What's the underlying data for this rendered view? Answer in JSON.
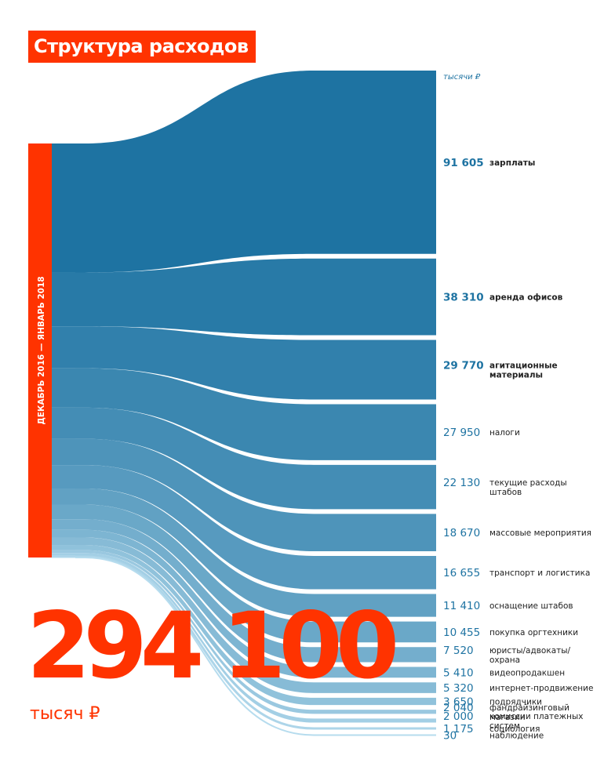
{
  "title": "Структура расходов",
  "chart_data": {
    "type": "sankey",
    "period": "ДЕКАБРЬ 2016 — ЯНВАРЬ 2018",
    "unit": "тысячи ₽",
    "total": "294 100",
    "total_unit": "тысяч ₽",
    "colors": {
      "accent": "#ff3300",
      "flow_dark": "#1e73a2",
      "flow_light": "#b6dcee"
    },
    "items": [
      {
        "value": 91605,
        "display": "91 605",
        "label": [
          "зарплаты"
        ],
        "bold": true
      },
      {
        "value": 38310,
        "display": "38 310",
        "label": [
          "аренда офисов"
        ],
        "bold": true
      },
      {
        "value": 29770,
        "display": "29 770",
        "label": [
          "агитационные",
          "материалы"
        ],
        "bold": true
      },
      {
        "value": 27950,
        "display": "27 950",
        "label": [
          "налоги"
        ],
        "bold": false
      },
      {
        "value": 22130,
        "display": "22 130",
        "label": [
          "текущие расходы",
          "штабов"
        ],
        "bold": false
      },
      {
        "value": 18670,
        "display": "18 670",
        "label": [
          "массовые мероприятия"
        ],
        "bold": false
      },
      {
        "value": 16655,
        "display": "16 655",
        "label": [
          "транспорт и логистика"
        ],
        "bold": false
      },
      {
        "value": 11410,
        "display": "11 410",
        "label": [
          "оснащение штабов"
        ],
        "bold": false
      },
      {
        "value": 10455,
        "display": "10 455",
        "label": [
          "покупка оргтехники"
        ],
        "bold": false
      },
      {
        "value": 7520,
        "display": "7 520",
        "label": [
          "юристы/адвокаты/",
          "охрана"
        ],
        "bold": false
      },
      {
        "value": 5410,
        "display": "5 410",
        "label": [
          "видеопродакшен"
        ],
        "bold": false
      },
      {
        "value": 5320,
        "display": "5 320",
        "label": [
          "интернет-продвижение"
        ],
        "bold": false
      },
      {
        "value": 3650,
        "display": "3 650",
        "label": [
          "подрядчики"
        ],
        "bold": false
      },
      {
        "value": 2040,
        "display": "2 040",
        "label": [
          "фандрайзинговый",
          "магазин"
        ],
        "bold": false
      },
      {
        "value": 2000,
        "display": "2 000",
        "label": [
          "комиссии платежных",
          "систем"
        ],
        "bold": false
      },
      {
        "value": 1175,
        "display": "1 175",
        "label": [
          "социология"
        ],
        "bold": false
      },
      {
        "value": 30,
        "display": "30",
        "label": [
          "наблюдение"
        ],
        "bold": false
      }
    ]
  }
}
